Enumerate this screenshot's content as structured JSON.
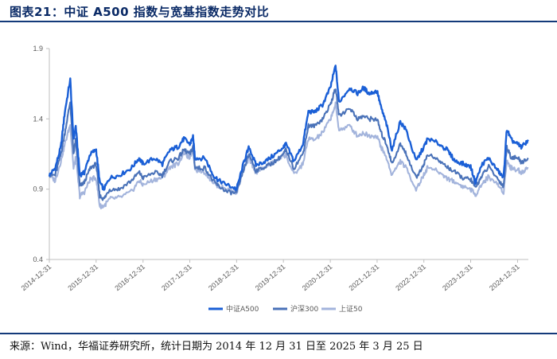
{
  "header": {
    "title": "图表21：中证 A500 指数与宽基指数走势对比"
  },
  "footer": {
    "source": "来源：Wind，华福证券研究所，统计日期为 2014 年 12 月 31 日至 2025 年 3 月 25 日"
  },
  "chart_data": {
    "type": "line",
    "title": "图表21：中证 A500 指数与宽基指数走势对比",
    "xlabel": "",
    "ylabel": "",
    "ylim": [
      0.4,
      1.9
    ],
    "yticks": [
      "0.4",
      "0.9",
      "1.4",
      "1.9"
    ],
    "xticks": [
      "2014-12-31",
      "2015-12-31",
      "2016-12-31",
      "2017-12-31",
      "2018-12-31",
      "2019-12-31",
      "2020-12-31",
      "2021-12-31",
      "2022-12-31",
      "2023-12-31",
      "2024-12-31"
    ],
    "grid": false,
    "legend_position": "bottom",
    "series": [
      {
        "name": "中证A500",
        "color": "#1a5fd6",
        "values": [
          [
            "2014-12-31",
            1.0
          ],
          [
            "2015-02-15",
            1.05
          ],
          [
            "2015-03-31",
            1.2
          ],
          [
            "2015-05-01",
            1.45
          ],
          [
            "2015-06-12",
            1.68
          ],
          [
            "2015-07-08",
            1.25
          ],
          [
            "2015-07-25",
            1.35
          ],
          [
            "2015-08-26",
            1.0
          ],
          [
            "2015-09-30",
            1.02
          ],
          [
            "2015-11-15",
            1.15
          ],
          [
            "2015-12-31",
            1.18
          ],
          [
            "2016-01-28",
            0.95
          ],
          [
            "2016-03-01",
            0.9
          ],
          [
            "2016-04-15",
            0.98
          ],
          [
            "2016-06-30",
            1.0
          ],
          [
            "2016-09-30",
            1.05
          ],
          [
            "2016-11-30",
            1.12
          ],
          [
            "2016-12-31",
            1.08
          ],
          [
            "2017-03-31",
            1.12
          ],
          [
            "2017-05-31",
            1.08
          ],
          [
            "2017-07-31",
            1.18
          ],
          [
            "2017-09-30",
            1.2
          ],
          [
            "2017-11-15",
            1.26
          ],
          [
            "2017-12-31",
            1.22
          ],
          [
            "2018-01-25",
            1.27
          ],
          [
            "2018-02-10",
            1.12
          ],
          [
            "2018-04-30",
            1.12
          ],
          [
            "2018-06-30",
            1.0
          ],
          [
            "2018-08-15",
            0.96
          ],
          [
            "2018-10-20",
            0.93
          ],
          [
            "2018-12-31",
            0.9
          ],
          [
            "2019-02-28",
            1.1
          ],
          [
            "2019-04-08",
            1.2
          ],
          [
            "2019-05-31",
            1.07
          ],
          [
            "2019-08-15",
            1.1
          ],
          [
            "2019-10-31",
            1.15
          ],
          [
            "2019-12-31",
            1.2
          ],
          [
            "2020-01-20",
            1.22
          ],
          [
            "2020-03-23",
            1.1
          ],
          [
            "2020-05-31",
            1.22
          ],
          [
            "2020-07-13",
            1.45
          ],
          [
            "2020-08-31",
            1.45
          ],
          [
            "2020-10-31",
            1.5
          ],
          [
            "2020-12-31",
            1.62
          ],
          [
            "2021-02-10",
            1.78
          ],
          [
            "2021-03-09",
            1.52
          ],
          [
            "2021-05-31",
            1.62
          ],
          [
            "2021-07-31",
            1.58
          ],
          [
            "2021-09-15",
            1.62
          ],
          [
            "2021-10-31",
            1.58
          ],
          [
            "2021-12-31",
            1.6
          ],
          [
            "2022-01-31",
            1.48
          ],
          [
            "2022-03-15",
            1.36
          ],
          [
            "2022-04-26",
            1.18
          ],
          [
            "2022-06-30",
            1.38
          ],
          [
            "2022-08-15",
            1.32
          ],
          [
            "2022-10-31",
            1.1
          ],
          [
            "2022-12-31",
            1.2
          ],
          [
            "2023-01-31",
            1.26
          ],
          [
            "2023-04-30",
            1.22
          ],
          [
            "2023-06-30",
            1.18
          ],
          [
            "2023-08-31",
            1.1
          ],
          [
            "2023-10-31",
            1.08
          ],
          [
            "2023-12-31",
            1.06
          ],
          [
            "2024-02-05",
            0.95
          ],
          [
            "2024-03-31",
            1.08
          ],
          [
            "2024-05-20",
            1.12
          ],
          [
            "2024-07-31",
            1.03
          ],
          [
            "2024-09-13",
            0.98
          ],
          [
            "2024-10-08",
            1.33
          ],
          [
            "2024-11-10",
            1.25
          ],
          [
            "2024-12-31",
            1.22
          ],
          [
            "2025-01-31",
            1.2
          ],
          [
            "2025-03-25",
            1.25
          ]
        ]
      },
      {
        "name": "沪深300",
        "color": "#4a72b8",
        "values": [
          [
            "2014-12-31",
            1.0
          ],
          [
            "2015-02-15",
            1.0
          ],
          [
            "2015-03-31",
            1.15
          ],
          [
            "2015-05-01",
            1.3
          ],
          [
            "2015-06-12",
            1.52
          ],
          [
            "2015-07-08",
            1.15
          ],
          [
            "2015-07-25",
            1.25
          ],
          [
            "2015-08-26",
            0.92
          ],
          [
            "2015-09-30",
            0.95
          ],
          [
            "2015-11-15",
            1.05
          ],
          [
            "2015-12-31",
            1.08
          ],
          [
            "2016-01-28",
            0.85
          ],
          [
            "2016-03-01",
            0.83
          ],
          [
            "2016-04-15",
            0.9
          ],
          [
            "2016-06-30",
            0.9
          ],
          [
            "2016-09-30",
            0.96
          ],
          [
            "2016-11-30",
            1.02
          ],
          [
            "2016-12-31",
            0.98
          ],
          [
            "2017-03-31",
            1.02
          ],
          [
            "2017-05-31",
            1.0
          ],
          [
            "2017-07-31",
            1.1
          ],
          [
            "2017-09-30",
            1.12
          ],
          [
            "2017-11-15",
            1.18
          ],
          [
            "2017-12-31",
            1.15
          ],
          [
            "2018-01-25",
            1.2
          ],
          [
            "2018-02-10",
            1.05
          ],
          [
            "2018-04-30",
            1.05
          ],
          [
            "2018-06-30",
            0.96
          ],
          [
            "2018-08-15",
            0.92
          ],
          [
            "2018-10-20",
            0.88
          ],
          [
            "2018-12-31",
            0.87
          ],
          [
            "2019-02-28",
            1.05
          ],
          [
            "2019-04-08",
            1.15
          ],
          [
            "2019-05-31",
            1.03
          ],
          [
            "2019-08-15",
            1.06
          ],
          [
            "2019-10-31",
            1.1
          ],
          [
            "2019-12-31",
            1.15
          ],
          [
            "2020-01-20",
            1.18
          ],
          [
            "2020-03-23",
            1.05
          ],
          [
            "2020-05-31",
            1.15
          ],
          [
            "2020-07-13",
            1.35
          ],
          [
            "2020-08-31",
            1.35
          ],
          [
            "2020-10-31",
            1.4
          ],
          [
            "2020-12-31",
            1.5
          ],
          [
            "2021-02-10",
            1.62
          ],
          [
            "2021-03-09",
            1.42
          ],
          [
            "2021-05-31",
            1.48
          ],
          [
            "2021-07-31",
            1.4
          ],
          [
            "2021-09-15",
            1.42
          ],
          [
            "2021-10-31",
            1.4
          ],
          [
            "2021-12-31",
            1.4
          ],
          [
            "2022-01-31",
            1.3
          ],
          [
            "2022-03-15",
            1.22
          ],
          [
            "2022-04-26",
            1.08
          ],
          [
            "2022-06-30",
            1.22
          ],
          [
            "2022-08-15",
            1.15
          ],
          [
            "2022-10-31",
            0.98
          ],
          [
            "2022-12-31",
            1.08
          ],
          [
            "2023-01-31",
            1.15
          ],
          [
            "2023-04-30",
            1.1
          ],
          [
            "2023-06-30",
            1.06
          ],
          [
            "2023-08-31",
            1.02
          ],
          [
            "2023-10-31",
            0.98
          ],
          [
            "2023-12-31",
            0.97
          ],
          [
            "2024-02-05",
            0.91
          ],
          [
            "2024-03-31",
            1.0
          ],
          [
            "2024-05-20",
            1.06
          ],
          [
            "2024-07-31",
            0.97
          ],
          [
            "2024-09-13",
            0.92
          ],
          [
            "2024-10-08",
            1.2
          ],
          [
            "2024-11-10",
            1.13
          ],
          [
            "2024-12-31",
            1.12
          ],
          [
            "2025-01-31",
            1.09
          ],
          [
            "2025-03-25",
            1.12
          ]
        ]
      },
      {
        "name": "上证50",
        "color": "#a3b4dc",
        "values": [
          [
            "2014-12-31",
            1.0
          ],
          [
            "2015-02-15",
            0.96
          ],
          [
            "2015-03-31",
            1.1
          ],
          [
            "2015-05-01",
            1.22
          ],
          [
            "2015-06-12",
            1.36
          ],
          [
            "2015-07-08",
            1.05
          ],
          [
            "2015-07-25",
            1.12
          ],
          [
            "2015-08-26",
            0.85
          ],
          [
            "2015-09-30",
            0.88
          ],
          [
            "2015-11-15",
            0.97
          ],
          [
            "2015-12-31",
            0.98
          ],
          [
            "2016-01-28",
            0.78
          ],
          [
            "2016-03-01",
            0.78
          ],
          [
            "2016-04-15",
            0.83
          ],
          [
            "2016-06-30",
            0.84
          ],
          [
            "2016-09-30",
            0.88
          ],
          [
            "2016-11-30",
            0.96
          ],
          [
            "2016-12-31",
            0.93
          ],
          [
            "2017-03-31",
            0.97
          ],
          [
            "2017-05-31",
            0.98
          ],
          [
            "2017-07-31",
            1.06
          ],
          [
            "2017-09-30",
            1.08
          ],
          [
            "2017-11-15",
            1.16
          ],
          [
            "2017-12-31",
            1.12
          ],
          [
            "2018-01-25",
            1.19
          ],
          [
            "2018-02-10",
            1.04
          ],
          [
            "2018-04-30",
            1.02
          ],
          [
            "2018-06-30",
            0.95
          ],
          [
            "2018-08-15",
            0.92
          ],
          [
            "2018-10-20",
            0.9
          ],
          [
            "2018-12-31",
            0.88
          ],
          [
            "2019-02-28",
            1.05
          ],
          [
            "2019-04-08",
            1.12
          ],
          [
            "2019-05-31",
            1.02
          ],
          [
            "2019-08-15",
            1.06
          ],
          [
            "2019-10-31",
            1.1
          ],
          [
            "2019-12-31",
            1.14
          ],
          [
            "2020-01-20",
            1.14
          ],
          [
            "2020-03-23",
            1.0
          ],
          [
            "2020-05-31",
            1.08
          ],
          [
            "2020-07-13",
            1.26
          ],
          [
            "2020-08-31",
            1.25
          ],
          [
            "2020-10-31",
            1.3
          ],
          [
            "2020-12-31",
            1.4
          ],
          [
            "2021-02-10",
            1.5
          ],
          [
            "2021-03-09",
            1.32
          ],
          [
            "2021-05-31",
            1.35
          ],
          [
            "2021-07-31",
            1.28
          ],
          [
            "2021-09-15",
            1.3
          ],
          [
            "2021-10-31",
            1.28
          ],
          [
            "2021-12-31",
            1.28
          ],
          [
            "2022-01-31",
            1.2
          ],
          [
            "2022-03-15",
            1.12
          ],
          [
            "2022-04-26",
            1.0
          ],
          [
            "2022-06-30",
            1.1
          ],
          [
            "2022-08-15",
            1.05
          ],
          [
            "2022-10-31",
            0.9
          ],
          [
            "2022-12-31",
            1.0
          ],
          [
            "2023-01-31",
            1.06
          ],
          [
            "2023-04-30",
            1.02
          ],
          [
            "2023-06-30",
            0.98
          ],
          [
            "2023-08-31",
            0.95
          ],
          [
            "2023-10-31",
            0.92
          ],
          [
            "2023-12-31",
            0.9
          ],
          [
            "2024-02-05",
            0.86
          ],
          [
            "2024-03-31",
            0.94
          ],
          [
            "2024-05-20",
            0.99
          ],
          [
            "2024-07-31",
            0.93
          ],
          [
            "2024-09-13",
            0.88
          ],
          [
            "2024-10-08",
            1.1
          ],
          [
            "2024-11-10",
            1.05
          ],
          [
            "2024-12-31",
            1.04
          ],
          [
            "2025-01-31",
            1.02
          ],
          [
            "2025-03-25",
            1.05
          ]
        ]
      }
    ]
  }
}
